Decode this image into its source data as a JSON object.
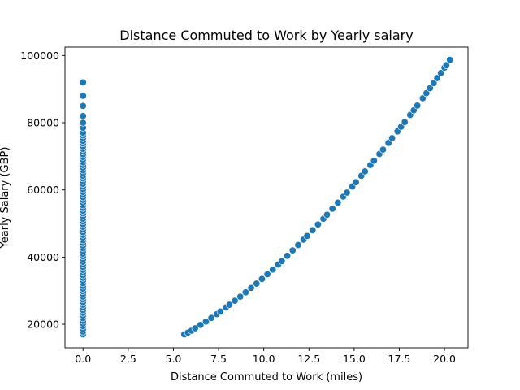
{
  "chart_data": {
    "type": "scatter",
    "title": "Distance Commuted to Work by Yearly salary",
    "xlabel": "Distance Commuted to Work (miles)",
    "ylabel": "Yearly Salary (GBP)",
    "xlim": [
      -1.0,
      21.3
    ],
    "ylim": [
      13000,
      102500
    ],
    "xticks": [
      0,
      2.5,
      5,
      7.5,
      10,
      12.5,
      15,
      17.5,
      20
    ],
    "xtick_labels": [
      "0.0",
      "2.5",
      "5.0",
      "7.5",
      "10.0",
      "12.5",
      "15.0",
      "17.5",
      "20.0"
    ],
    "yticks": [
      20000,
      40000,
      60000,
      80000,
      100000
    ],
    "ytick_labels": [
      "20000",
      "40000",
      "60000",
      "80000",
      "100000"
    ],
    "grid": false,
    "point_color": "#1f77b4",
    "point_edge_color": "#ffffff",
    "series": [
      {
        "x": [
          0,
          0,
          0,
          0,
          0,
          0,
          0,
          0,
          0,
          0,
          0,
          0,
          0,
          0,
          0,
          0,
          0,
          0,
          0,
          0,
          0,
          0,
          0,
          0,
          0,
          0,
          0,
          0,
          0,
          0,
          0,
          0,
          0,
          0,
          0,
          0,
          0,
          0,
          0,
          0,
          0,
          0,
          0,
          0,
          0,
          0,
          0,
          0,
          0,
          0,
          0,
          0,
          0,
          0,
          0,
          0,
          0,
          0,
          0,
          0,
          0,
          0,
          0,
          0,
          0,
          0,
          0,
          0,
          0,
          0,
          0,
          0,
          0,
          0,
          0,
          0,
          0,
          0,
          0,
          0,
          0,
          0,
          5.6,
          5.8,
          6.0,
          6.2,
          6.5,
          6.8,
          7.1,
          7.4,
          7.6,
          7.9,
          8.1,
          8.4,
          8.7,
          9.0,
          9.3,
          9.6,
          9.9,
          10.2,
          10.5,
          10.8,
          11.0,
          11.3,
          11.6,
          11.9,
          12.2,
          12.4,
          12.7,
          13.0,
          13.3,
          13.5,
          13.8,
          14.1,
          14.4,
          14.6,
          14.9,
          15.1,
          15.4,
          15.6,
          15.9,
          16.1,
          16.4,
          16.6,
          16.9,
          17.1,
          17.4,
          17.6,
          17.8,
          18.1,
          18.3,
          18.5,
          18.8,
          19.0,
          19.2,
          19.4,
          19.6,
          19.8,
          20.0,
          20.1,
          20.3
        ],
        "y": [
          17000,
          17800,
          18600,
          19400,
          20200,
          21000,
          21800,
          22600,
          23400,
          24200,
          25000,
          25800,
          26600,
          27400,
          28200,
          29000,
          29800,
          30600,
          31400,
          32200,
          33000,
          33800,
          34600,
          35400,
          36200,
          37000,
          37800,
          38600,
          39400,
          40200,
          41000,
          41800,
          42600,
          43400,
          44200,
          45000,
          45800,
          46600,
          47400,
          48200,
          49000,
          49800,
          50600,
          51400,
          52200,
          53000,
          53800,
          54600,
          55400,
          56200,
          57000,
          57800,
          58600,
          59400,
          60200,
          61000,
          61800,
          62600,
          63400,
          64200,
          65000,
          65800,
          66600,
          67400,
          68200,
          69000,
          69800,
          70600,
          71400,
          72200,
          73000,
          73800,
          74600,
          75400,
          76200,
          77000,
          78500,
          80000,
          82000,
          85000,
          88000,
          92000,
          17000,
          17500,
          18100,
          18800,
          19800,
          20800,
          21900,
          23000,
          23800,
          25000,
          25800,
          27000,
          28200,
          29500,
          30800,
          32100,
          33500,
          34900,
          36300,
          37800,
          38800,
          40400,
          42000,
          43600,
          45200,
          46300,
          48000,
          49700,
          51400,
          52600,
          54400,
          56200,
          58000,
          59200,
          61000,
          62300,
          64200,
          65500,
          67400,
          68700,
          70700,
          72000,
          74000,
          75400,
          77400,
          78800,
          80200,
          82300,
          83700,
          85100,
          87300,
          88800,
          90300,
          91800,
          93300,
          94800,
          96400,
          97100,
          98700
        ]
      }
    ]
  }
}
